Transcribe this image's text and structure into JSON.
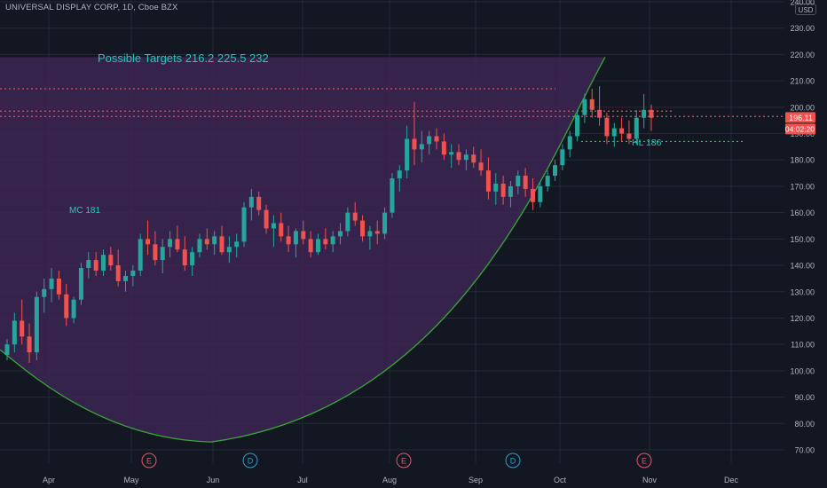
{
  "header": {
    "title": "UNIVERSAL DISPLAY CORP, 1D, Cboe BZX"
  },
  "currency": "USD",
  "chart_data": {
    "type": "candlestick",
    "title": "UNIVERSAL DISPLAY CORP, 1D, Cboe BZX",
    "y_ticks": [
      "70.00",
      "80.00",
      "90.00",
      "100.00",
      "110.00",
      "120.00",
      "130.00",
      "140.00",
      "150.00",
      "160.00",
      "170.00",
      "180.00",
      "190.00",
      "200.00",
      "210.00",
      "220.00",
      "230.00",
      "240.00"
    ],
    "ylim": [
      70,
      240
    ],
    "x_ticks": [
      "Apr",
      "May",
      "Jun",
      "Jul",
      "Aug",
      "Sep",
      "Oct",
      "Nov",
      "Dec"
    ],
    "price_label": "196.11",
    "countdown_label": "04:02:20",
    "annotations": [
      {
        "text": "Possible Targets  216.2   225.5   232"
      },
      {
        "text": "MC 181"
      },
      {
        "text": "HL 186"
      }
    ],
    "event_markers": [
      {
        "label": "E",
        "month": "May"
      },
      {
        "label": "D",
        "month": "Jun"
      },
      {
        "label": "E",
        "month": "Aug"
      },
      {
        "label": "D",
        "month": "Sep"
      },
      {
        "label": "E",
        "month": "Nov"
      }
    ],
    "levels": [
      {
        "value": 207,
        "style": "dotted-red"
      },
      {
        "value": 198.5,
        "style": "dotted-red"
      },
      {
        "value": 196.5,
        "style": "dotted-red"
      },
      {
        "value": 187,
        "style": "dotted-green"
      }
    ],
    "candles": [
      [
        106,
        112,
        104,
        110
      ],
      [
        110,
        122,
        107,
        119
      ],
      [
        119,
        127,
        110,
        113
      ],
      [
        113,
        118,
        103,
        107
      ],
      [
        107,
        130,
        104,
        128
      ],
      [
        128,
        135,
        122,
        131
      ],
      [
        131,
        139,
        126,
        135
      ],
      [
        135,
        138,
        127,
        129
      ],
      [
        129,
        133,
        117,
        120
      ],
      [
        120,
        128,
        118,
        127
      ],
      [
        127,
        141,
        125,
        139
      ],
      [
        139,
        145,
        135,
        142
      ],
      [
        142,
        145,
        136,
        138
      ],
      [
        138,
        146,
        136,
        144
      ],
      [
        144,
        147,
        138,
        140
      ],
      [
        140,
        146,
        132,
        134
      ],
      [
        134,
        138,
        130,
        136
      ],
      [
        136,
        140,
        132,
        138
      ],
      [
        138,
        152,
        136,
        150
      ],
      [
        150,
        157,
        144,
        148
      ],
      [
        148,
        153,
        140,
        142
      ],
      [
        142,
        150,
        137,
        147
      ],
      [
        147,
        153,
        143,
        150
      ],
      [
        150,
        155,
        145,
        146
      ],
      [
        146,
        151,
        138,
        140
      ],
      [
        140,
        147,
        136,
        145
      ],
      [
        145,
        152,
        143,
        150
      ],
      [
        150,
        154,
        146,
        148
      ],
      [
        148,
        153,
        144,
        151
      ],
      [
        151,
        155,
        144,
        145
      ],
      [
        145,
        151,
        141,
        147
      ],
      [
        147,
        152,
        143,
        149
      ],
      [
        149,
        164,
        147,
        162
      ],
      [
        162,
        169,
        157,
        166
      ],
      [
        166,
        168,
        159,
        161
      ],
      [
        161,
        163,
        152,
        154
      ],
      [
        154,
        159,
        147,
        156
      ],
      [
        156,
        160,
        149,
        151
      ],
      [
        151,
        155,
        145,
        148
      ],
      [
        148,
        154,
        143,
        153
      ],
      [
        153,
        157,
        148,
        150
      ],
      [
        150,
        153,
        143,
        145
      ],
      [
        145,
        152,
        144,
        150
      ],
      [
        150,
        154,
        146,
        148
      ],
      [
        148,
        153,
        145,
        151
      ],
      [
        151,
        156,
        148,
        153
      ],
      [
        153,
        162,
        151,
        160
      ],
      [
        160,
        164,
        155,
        157
      ],
      [
        157,
        159,
        149,
        151
      ],
      [
        151,
        155,
        146,
        153
      ],
      [
        153,
        157,
        148,
        152
      ],
      [
        152,
        162,
        150,
        160
      ],
      [
        160,
        175,
        158,
        173
      ],
      [
        173,
        178,
        168,
        176
      ],
      [
        176,
        193,
        173,
        188
      ],
      [
        188,
        202,
        178,
        184
      ],
      [
        184,
        191,
        179,
        186
      ],
      [
        186,
        191,
        182,
        189
      ],
      [
        189,
        192,
        184,
        187
      ],
      [
        187,
        190,
        180,
        182
      ],
      [
        182,
        186,
        177,
        183
      ],
      [
        183,
        186,
        178,
        180
      ],
      [
        180,
        184,
        176,
        182
      ],
      [
        182,
        185,
        177,
        179
      ],
      [
        179,
        184,
        174,
        176
      ],
      [
        176,
        181,
        165,
        168
      ],
      [
        168,
        175,
        163,
        171
      ],
      [
        171,
        174,
        163,
        166
      ],
      [
        166,
        172,
        162,
        170
      ],
      [
        170,
        176,
        167,
        174
      ],
      [
        174,
        177,
        166,
        169
      ],
      [
        169,
        173,
        161,
        164
      ],
      [
        164,
        172,
        162,
        170
      ],
      [
        170,
        176,
        168,
        174
      ],
      [
        174,
        180,
        172,
        178
      ],
      [
        178,
        186,
        176,
        184
      ],
      [
        184,
        191,
        181,
        189
      ],
      [
        189,
        199,
        187,
        197
      ],
      [
        197,
        205,
        194,
        203
      ],
      [
        203,
        207,
        196,
        199
      ],
      [
        199,
        208,
        193,
        196
      ],
      [
        196,
        198,
        186,
        189
      ],
      [
        189,
        194,
        185,
        192
      ],
      [
        192,
        196,
        187,
        190
      ],
      [
        190,
        195,
        186,
        188
      ],
      [
        188,
        199,
        186,
        196
      ],
      [
        196,
        205,
        192,
        199
      ],
      [
        199,
        201,
        191,
        196
      ]
    ],
    "cup_curve": {
      "color": "#3aa63a"
    }
  },
  "colors": {
    "background": "#131722",
    "grid": "#242a36",
    "up": "#26a69a",
    "down": "#ef5350",
    "cup_fill": "#3d2654",
    "annotation_text": "#26c6b8"
  }
}
